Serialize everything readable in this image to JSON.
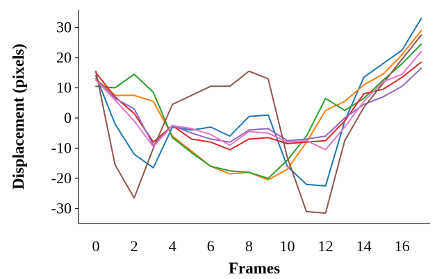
{
  "chart_data": {
    "type": "line",
    "title": "",
    "xlabel": "Frames",
    "ylabel": "Displacement (pixels)",
    "xlim": [
      0,
      17
    ],
    "ylim": [
      -35,
      35
    ],
    "x_ticks": [
      0,
      2,
      4,
      6,
      8,
      10,
      12,
      14,
      16
    ],
    "y_ticks": [
      30,
      20,
      10,
      0,
      -10,
      -20,
      -30
    ],
    "grid": false,
    "legend": "none",
    "x": [
      0,
      1,
      2,
      3,
      4,
      5,
      6,
      7,
      8,
      9,
      10,
      11,
      12,
      13,
      14,
      15,
      16,
      17
    ],
    "series": [
      {
        "color": "#1f77b4",
        "values": [
          14,
          -2,
          -12,
          -16.5,
          -3,
          -4,
          -3,
          -6,
          0.5,
          1,
          -16,
          -22,
          -22.5,
          -1,
          13.5,
          18,
          22.5,
          33
        ]
      },
      {
        "color": "#ff7f0e",
        "values": [
          13,
          7.5,
          7.5,
          5.5,
          -6,
          -11,
          -16,
          -18.5,
          -18,
          -20.5,
          -17,
          -8,
          2.5,
          5.5,
          11,
          14.5,
          21,
          29
        ]
      },
      {
        "color": "#2ca02c",
        "values": [
          10.5,
          10,
          14.5,
          8.5,
          -6.5,
          -11.5,
          -16,
          -17.5,
          -18,
          -20,
          -14,
          -6,
          6.5,
          2.5,
          6.5,
          12.5,
          18,
          24.5
        ]
      },
      {
        "color": "#d62728",
        "values": [
          15,
          7,
          1.5,
          -8,
          -2.5,
          -7,
          -8,
          -10.5,
          -7,
          -6.5,
          -8.5,
          -8,
          -7.5,
          -1,
          8,
          9.5,
          13.5,
          18.5
        ]
      },
      {
        "color": "#9467bd",
        "values": [
          13,
          6.5,
          3,
          -9,
          -2.5,
          -5,
          -7,
          -8,
          -4,
          -3.5,
          -7.5,
          -7,
          -6,
          0,
          4.5,
          7,
          10.5,
          16.5
        ]
      },
      {
        "color": "#8c564b",
        "values": [
          15.5,
          -15.5,
          -26.5,
          -10,
          4.5,
          7.5,
          10.5,
          10.5,
          15.5,
          13,
          -13,
          -31,
          -31.5,
          -7.5,
          3.5,
          11.5,
          19.5,
          27.5
        ]
      },
      {
        "color": "#e377c2",
        "values": [
          12.5,
          6,
          -1,
          -9.5,
          -2.5,
          -3.5,
          -5.5,
          -9,
          -4.5,
          -5,
          -8,
          -7.5,
          -10.5,
          -3,
          5.5,
          12,
          14.5,
          22
        ]
      }
    ]
  }
}
